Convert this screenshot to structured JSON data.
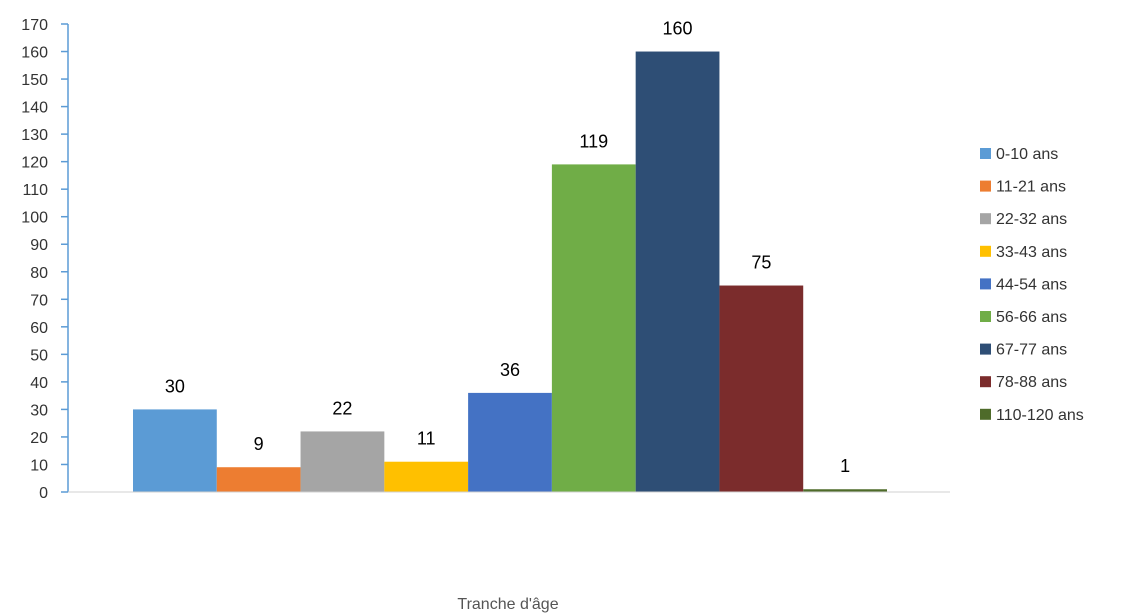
{
  "chart_data": {
    "type": "bar",
    "title": "",
    "xlabel": "Tranche d'âge",
    "ylabel": "",
    "ylim": [
      0,
      170
    ],
    "ytick_step": 10,
    "grid": false,
    "legend_position": "right",
    "series": [
      {
        "name": "0-10 ans",
        "value": 30,
        "color": "#5B9BD5"
      },
      {
        "name": "11-21 ans",
        "value": 9,
        "color": "#ED7D31"
      },
      {
        "name": "22-32 ans",
        "value": 22,
        "color": "#A5A5A5"
      },
      {
        "name": "33-43 ans",
        "value": 11,
        "color": "#FFC000"
      },
      {
        "name": "44-54 ans",
        "value": 36,
        "color": "#4472C4"
      },
      {
        "name": "56-66 ans",
        "value": 119,
        "color": "#70AD47"
      },
      {
        "name": "67-77 ans",
        "value": 160,
        "color": "#2E4E75"
      },
      {
        "name": "78-88 ans",
        "value": 75,
        "color": "#7B2C2C"
      },
      {
        "name": "110-120 ans",
        "value": 1,
        "color": "#4E6B2A"
      }
    ]
  }
}
